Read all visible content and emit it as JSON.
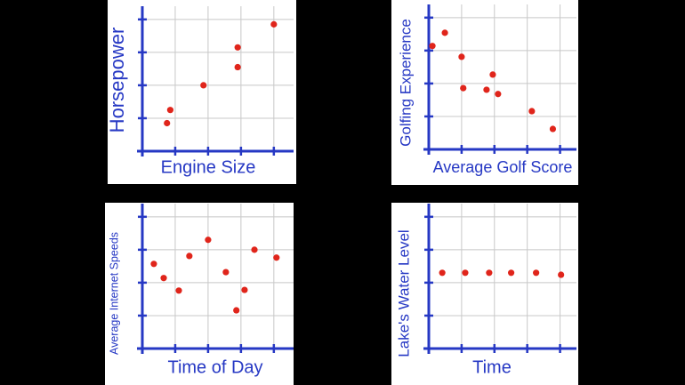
{
  "chart_data": [
    {
      "type": "scatter",
      "x_label": "Engine Size",
      "y_label": "Horsepower",
      "color": "#e0251b",
      "grid": true,
      "x": [
        0.75,
        0.85,
        1.86,
        2.9,
        2.9,
        4.0
      ],
      "y": [
        0.85,
        1.25,
        2.0,
        3.15,
        2.55,
        3.85
      ],
      "xlim": [
        0,
        4.6
      ],
      "ylim": [
        0,
        4.4
      ],
      "xticks": [
        1,
        2,
        3,
        4
      ],
      "yticks": [
        1,
        2,
        3,
        4
      ]
    },
    {
      "type": "scatter",
      "x_label": "Average Golf Score",
      "y_label": "Golfing Experience",
      "color": "#e0251b",
      "grid": true,
      "x": [
        0.11,
        0.49,
        1.0,
        1.05,
        1.76,
        1.95,
        2.11,
        3.14,
        3.78
      ],
      "y": [
        3.14,
        3.54,
        2.81,
        1.86,
        1.81,
        2.27,
        1.68,
        1.16,
        0.62
      ],
      "xlim": [
        0,
        4.5
      ],
      "ylim": [
        0,
        4.4
      ],
      "xticks": [
        1,
        2,
        3,
        4
      ],
      "yticks": [
        1,
        2,
        3,
        4
      ]
    },
    {
      "type": "scatter",
      "x_label": "Time of Day",
      "y_label": "Average Internet Speeds",
      "color": "#e0251b",
      "grid": true,
      "x": [
        0.35,
        0.65,
        1.11,
        1.43,
        2.0,
        2.54,
        2.86,
        3.11,
        3.41,
        4.08
      ],
      "y": [
        2.57,
        2.14,
        1.76,
        2.81,
        3.3,
        2.32,
        1.16,
        1.78,
        3.0,
        2.76
      ],
      "xlim": [
        0,
        4.6
      ],
      "ylim": [
        0,
        4.4
      ],
      "xticks": [
        1,
        2,
        3,
        4
      ],
      "yticks": [
        1,
        2,
        3,
        4
      ]
    },
    {
      "type": "scatter",
      "x_label": "Time",
      "y_label": "Lake's Water Level",
      "color": "#e0251b",
      "grid": true,
      "x": [
        0.41,
        1.11,
        1.84,
        2.51,
        3.27,
        4.03
      ],
      "y": [
        2.3,
        2.3,
        2.3,
        2.3,
        2.3,
        2.24
      ],
      "xlim": [
        0,
        4.5
      ],
      "ylim": [
        0,
        4.4
      ],
      "xticks": [
        1,
        2,
        3,
        4
      ],
      "yticks": [
        1,
        2,
        3,
        4
      ]
    }
  ]
}
